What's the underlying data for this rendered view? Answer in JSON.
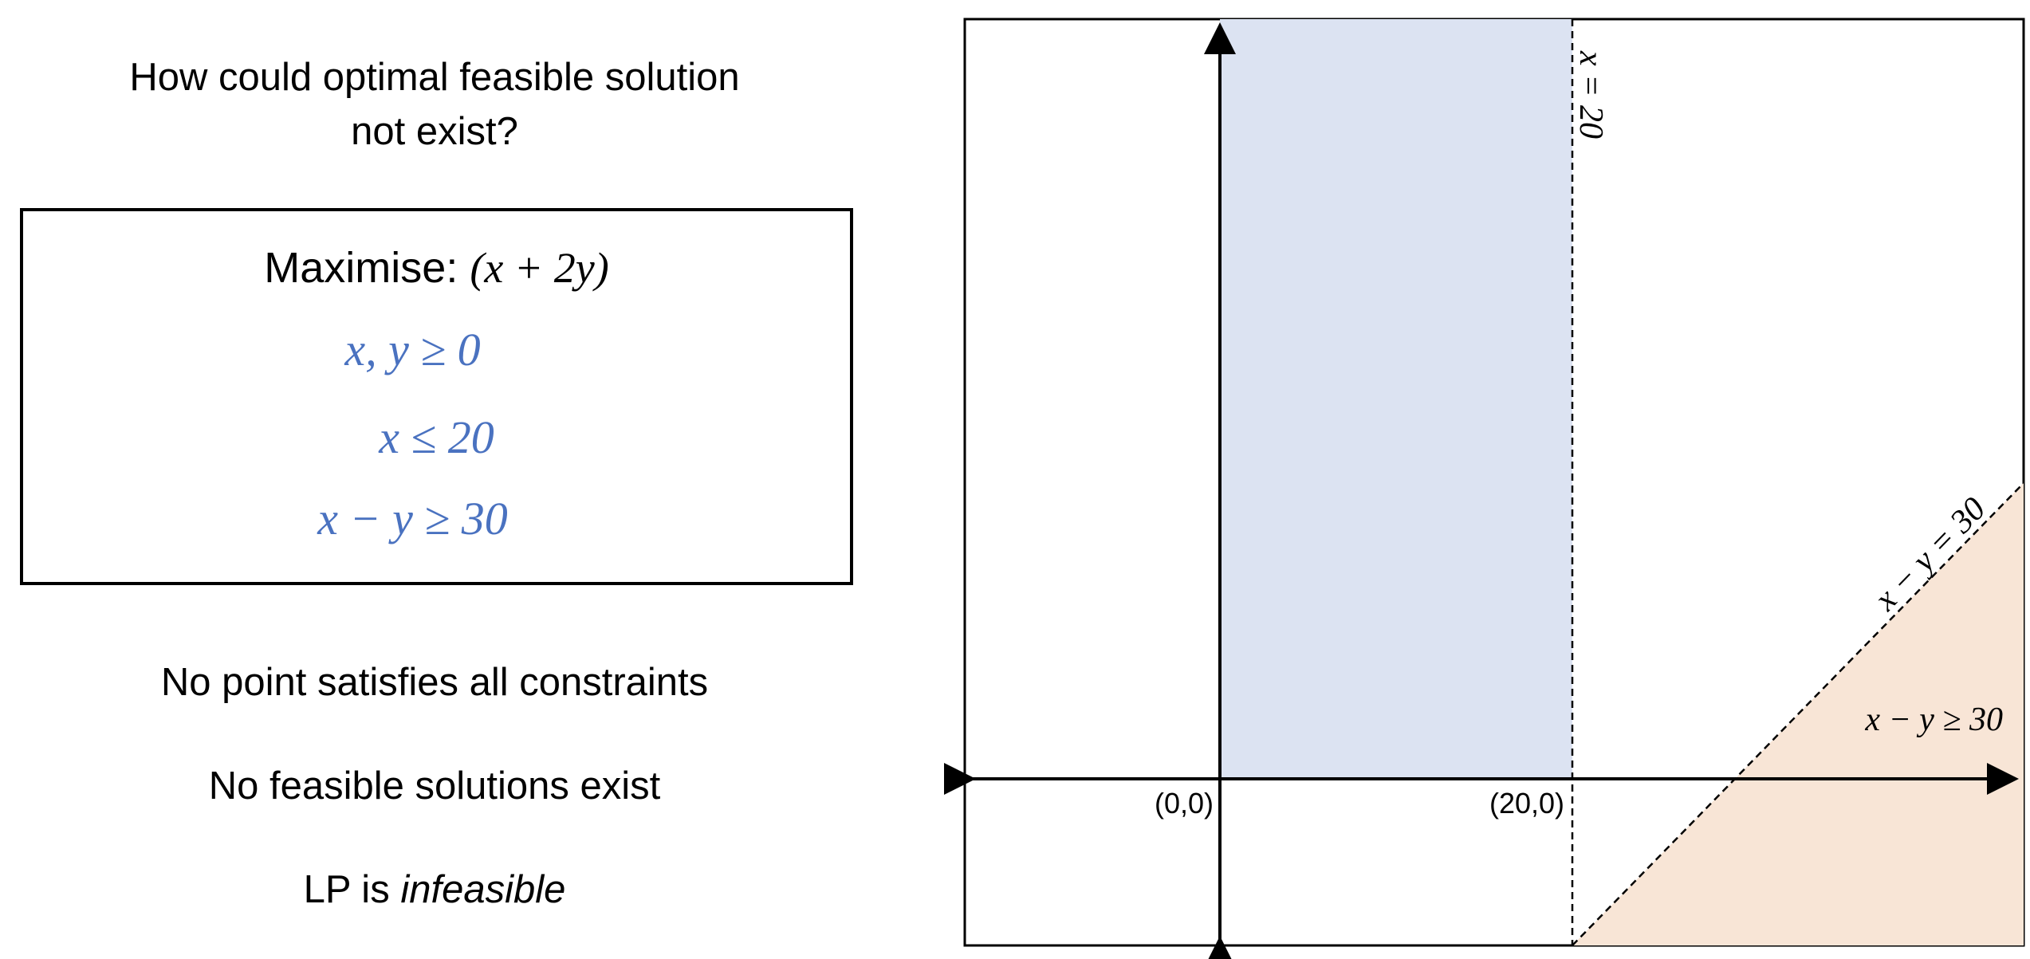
{
  "question": {
    "line1": "How could optimal feasible solution",
    "line2": "not exist?"
  },
  "lp": {
    "objective_label": "Maximise:",
    "objective_expr": "(x + 2y)",
    "constraints": [
      "x, y ≥ 0",
      "x ≤ 20",
      "x − y ≥ 30"
    ]
  },
  "statements": {
    "s1": "No point satisfies all constraints",
    "s2": "No feasible solutions exist",
    "s3_prefix": "LP is ",
    "s3_emphasis": "infeasible"
  },
  "plot": {
    "origin_label": "(0,0)",
    "x20_point_label": "(20,0)",
    "line_x20_label": "x = 20",
    "line_xy30_label": "x − y = 30",
    "region_xy30_label": "x − y ≥ 30",
    "colors": {
      "feasible_x_region": "#dce3f2",
      "xy_region": "#f8e5d6",
      "axes": "#000000"
    }
  }
}
